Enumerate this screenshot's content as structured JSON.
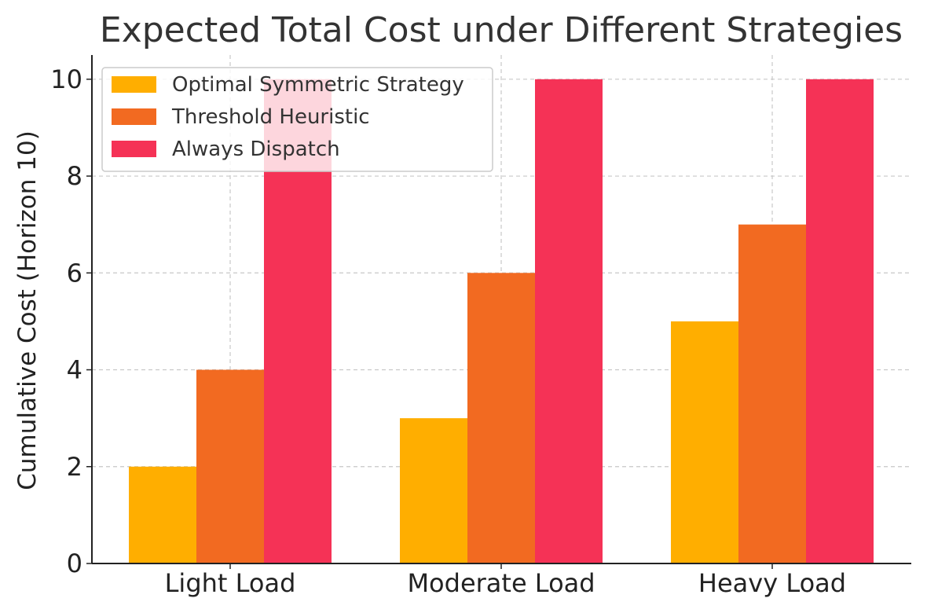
{
  "chart_data": {
    "type": "bar",
    "title": "Expected Total Cost under Different Strategies",
    "xlabel": "",
    "ylabel": "Cumulative Cost (Horizon 10)",
    "categories": [
      "Light Load",
      "Moderate Load",
      "Heavy Load"
    ],
    "series": [
      {
        "name": "Optimal Symmetric Strategy",
        "values": [
          2,
          3,
          5
        ],
        "color": "#FFAE00"
      },
      {
        "name": "Threshold Heuristic",
        "values": [
          4,
          6,
          7
        ],
        "color": "#F26A21"
      },
      {
        "name": "Always Dispatch",
        "values": [
          10,
          10,
          10
        ],
        "color": "#F53256"
      }
    ],
    "ylim": [
      0,
      10.5
    ],
    "yticks": [
      0,
      2,
      4,
      6,
      8,
      10
    ],
    "grid": true,
    "legend_position": "top-left"
  }
}
